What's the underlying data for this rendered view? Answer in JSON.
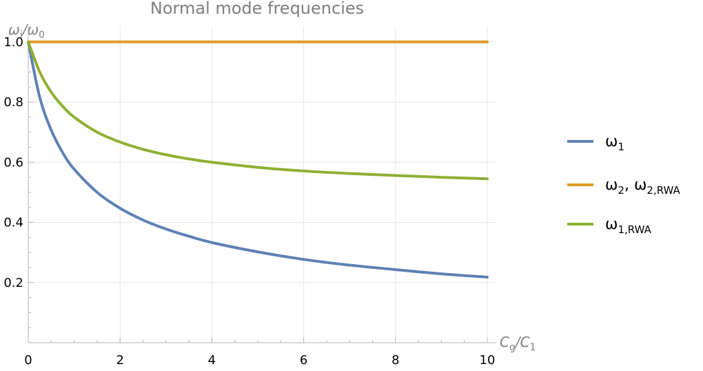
{
  "chart_data": {
    "type": "line",
    "title": "Normal mode frequencies",
    "ylabel": {
      "base": "ω",
      "sub1": "i",
      "sep": "/",
      "base2": "ω",
      "sub2": "0"
    },
    "xlabel": {
      "base": "C",
      "sub1": "g",
      "sep": "/",
      "base2": "C",
      "sub2": "1"
    },
    "xlim": [
      0,
      10
    ],
    "ylim": [
      0,
      1.05
    ],
    "x_ticks": [
      0,
      2,
      4,
      6,
      8,
      10
    ],
    "x_tick_labels": [
      "0",
      "2",
      "4",
      "6",
      "8",
      "10"
    ],
    "y_ticks": [
      0.2,
      0.4,
      0.6,
      0.8,
      1.0
    ],
    "y_tick_labels": [
      "0.2",
      "0.4",
      "0.6",
      "0.8",
      "1.0"
    ],
    "grid": true,
    "legend_position": "right",
    "x": [
      0,
      0.25,
      0.5,
      0.75,
      1,
      1.5,
      2,
      2.5,
      3,
      3.5,
      4,
      5,
      6,
      7,
      8,
      9,
      10
    ],
    "series": [
      {
        "name": "ω1",
        "legend": {
          "base": "ω",
          "sub": "1"
        },
        "color": "#5e81b5",
        "values": [
          1.0,
          0.816,
          0.707,
          0.632,
          0.577,
          0.5,
          0.447,
          0.408,
          0.378,
          0.354,
          0.333,
          0.302,
          0.277,
          0.258,
          0.243,
          0.229,
          0.218
        ]
      },
      {
        "name": "ω2, ω2,RWA",
        "legend": {
          "base": "ω",
          "sub": "2",
          "sep": ", ",
          "base2": "ω",
          "sub2": "2,RWA"
        },
        "color": "#e19c24",
        "values": [
          1.0,
          1.0,
          1.0,
          1.0,
          1.0,
          1.0,
          1.0,
          1.0,
          1.0,
          1.0,
          1.0,
          1.0,
          1.0,
          1.0,
          1.0,
          1.0,
          1.0
        ]
      },
      {
        "name": "ω1,RWA",
        "legend": {
          "base": "ω",
          "sub": "1,RWA"
        },
        "color": "#8fb032",
        "values": [
          1.0,
          0.9,
          0.833,
          0.786,
          0.75,
          0.7,
          0.667,
          0.643,
          0.625,
          0.611,
          0.6,
          0.583,
          0.571,
          0.5625,
          0.556,
          0.55,
          0.545
        ]
      }
    ]
  }
}
